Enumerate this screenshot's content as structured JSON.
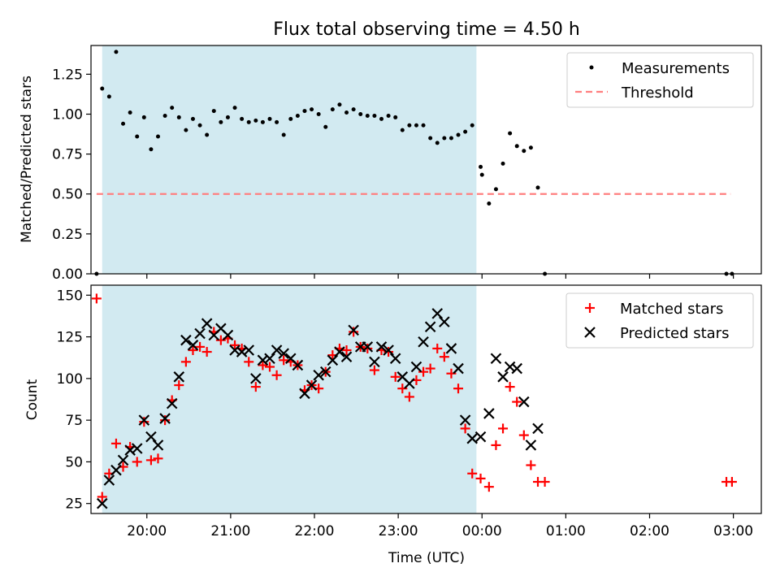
{
  "figure": {
    "title": "Flux total observing time = 4.50 h",
    "xlabel": "Time (UTC)",
    "shade_color": "#add8e6",
    "x_tick_labels": [
      "20:00",
      "21:00",
      "22:00",
      "23:00",
      "00:00",
      "01:00",
      "02:00",
      "03:00"
    ]
  },
  "chart_data": [
    {
      "type": "scatter",
      "panel": "top",
      "ylabel": "Matched/Predicted stars",
      "xlim": [
        "19:20",
        "03:20"
      ],
      "ylim": [
        0,
        1.43
      ],
      "yticks": [
        "0.00",
        "0.25",
        "0.50",
        "0.75",
        "1.00",
        "1.25"
      ],
      "shaded_interval": [
        "19:28",
        "23:56"
      ],
      "legend_position": "upper right",
      "threshold": {
        "name": "Threshold",
        "value": 0.5,
        "x_range": [
          "19:24",
          "02:58"
        ],
        "color": "#ff7f7f",
        "style": "dashed"
      },
      "series": [
        {
          "name": "Measurements",
          "color": "#000000",
          "marker": "dot",
          "points": [
            [
              "19:24",
              0.0
            ],
            [
              "19:28",
              1.16
            ],
            [
              "19:33",
              1.11
            ],
            [
              "19:38",
              1.39
            ],
            [
              "19:43",
              0.94
            ],
            [
              "19:48",
              1.01
            ],
            [
              "19:53",
              0.86
            ],
            [
              "19:58",
              0.98
            ],
            [
              "20:03",
              0.78
            ],
            [
              "20:08",
              0.86
            ],
            [
              "20:13",
              0.99
            ],
            [
              "20:18",
              1.04
            ],
            [
              "20:23",
              0.98
            ],
            [
              "20:28",
              0.9
            ],
            [
              "20:33",
              0.97
            ],
            [
              "20:38",
              0.93
            ],
            [
              "20:43",
              0.87
            ],
            [
              "20:48",
              1.02
            ],
            [
              "20:53",
              0.95
            ],
            [
              "20:58",
              0.98
            ],
            [
              "21:03",
              1.04
            ],
            [
              "21:08",
              0.97
            ],
            [
              "21:13",
              0.95
            ],
            [
              "21:18",
              0.96
            ],
            [
              "21:23",
              0.95
            ],
            [
              "21:28",
              0.97
            ],
            [
              "21:33",
              0.95
            ],
            [
              "21:38",
              0.87
            ],
            [
              "21:43",
              0.97
            ],
            [
              "21:48",
              0.99
            ],
            [
              "21:53",
              1.02
            ],
            [
              "21:58",
              1.03
            ],
            [
              "22:03",
              1.0
            ],
            [
              "22:08",
              0.92
            ],
            [
              "22:13",
              1.03
            ],
            [
              "22:18",
              1.06
            ],
            [
              "22:23",
              1.01
            ],
            [
              "22:28",
              1.03
            ],
            [
              "22:33",
              1.0
            ],
            [
              "22:38",
              0.99
            ],
            [
              "22:43",
              0.99
            ],
            [
              "22:48",
              0.97
            ],
            [
              "22:53",
              0.99
            ],
            [
              "22:58",
              0.98
            ],
            [
              "23:03",
              0.9
            ],
            [
              "23:08",
              0.93
            ],
            [
              "23:13",
              0.93
            ],
            [
              "23:18",
              0.93
            ],
            [
              "23:23",
              0.85
            ],
            [
              "23:28",
              0.82
            ],
            [
              "23:33",
              0.85
            ],
            [
              "23:38",
              0.85
            ],
            [
              "23:43",
              0.87
            ],
            [
              "23:48",
              0.89
            ],
            [
              "23:53",
              0.93
            ],
            [
              "23:59",
              0.67
            ],
            [
              "00:00",
              0.62
            ],
            [
              "00:05",
              0.44
            ],
            [
              "00:10",
              0.53
            ],
            [
              "00:15",
              0.69
            ],
            [
              "00:20",
              0.88
            ],
            [
              "00:25",
              0.8
            ],
            [
              "00:30",
              0.77
            ],
            [
              "00:35",
              0.79
            ],
            [
              "00:40",
              0.54
            ],
            [
              "00:45",
              0.0
            ],
            [
              "02:55",
              0.0
            ],
            [
              "02:59",
              0.0
            ]
          ]
        }
      ]
    },
    {
      "type": "scatter",
      "panel": "bottom",
      "ylabel": "Count",
      "xlim": [
        "19:20",
        "03:20"
      ],
      "ylim": [
        19,
        156
      ],
      "yticks": [
        "25",
        "50",
        "75",
        "100",
        "125",
        "150"
      ],
      "shaded_interval": [
        "19:28",
        "23:56"
      ],
      "legend_position": "upper right",
      "series": [
        {
          "name": "Matched stars",
          "color": "#ff0000",
          "marker": "plus",
          "points": [
            [
              "19:24",
              148
            ],
            [
              "19:28",
              29
            ],
            [
              "19:33",
              43
            ],
            [
              "19:38",
              61
            ],
            [
              "19:43",
              47
            ],
            [
              "19:48",
              59
            ],
            [
              "19:53",
              50
            ],
            [
              "19:58",
              74
            ],
            [
              "20:03",
              51
            ],
            [
              "20:08",
              52
            ],
            [
              "20:13",
              75
            ],
            [
              "20:18",
              87
            ],
            [
              "20:23",
              96
            ],
            [
              "20:28",
              110
            ],
            [
              "20:33",
              117
            ],
            [
              "20:38",
              119
            ],
            [
              "20:43",
              116
            ],
            [
              "20:48",
              128
            ],
            [
              "20:53",
              123
            ],
            [
              "20:58",
              124
            ],
            [
              "21:03",
              120
            ],
            [
              "21:08",
              118
            ],
            [
              "21:13",
              110
            ],
            [
              "21:18",
              95
            ],
            [
              "21:23",
              108
            ],
            [
              "21:28",
              107
            ],
            [
              "21:33",
              102
            ],
            [
              "21:38",
              111
            ],
            [
              "21:43",
              110
            ],
            [
              "21:48",
              108
            ],
            [
              "21:53",
              93
            ],
            [
              "21:58",
              96
            ],
            [
              "22:03",
              94
            ],
            [
              "22:08",
              104
            ],
            [
              "22:13",
              114
            ],
            [
              "22:18",
              118
            ],
            [
              "22:23",
              117
            ],
            [
              "22:28",
              128
            ],
            [
              "22:33",
              119
            ],
            [
              "22:38",
              118
            ],
            [
              "22:43",
              105
            ],
            [
              "22:48",
              117
            ],
            [
              "22:53",
              116
            ],
            [
              "22:58",
              101
            ],
            [
              "23:03",
              94
            ],
            [
              "23:08",
              89
            ],
            [
              "23:13",
              99
            ],
            [
              "23:18",
              104
            ],
            [
              "23:23",
              106
            ],
            [
              "23:28",
              118
            ],
            [
              "23:33",
              113
            ],
            [
              "23:38",
              103
            ],
            [
              "23:43",
              94
            ],
            [
              "23:48",
              70
            ],
            [
              "23:53",
              43
            ],
            [
              "23:59",
              40
            ],
            [
              "00:05",
              35
            ],
            [
              "00:10",
              60
            ],
            [
              "00:15",
              70
            ],
            [
              "00:20",
              95
            ],
            [
              "00:25",
              86
            ],
            [
              "00:30",
              66
            ],
            [
              "00:35",
              48
            ],
            [
              "00:40",
              38
            ],
            [
              "00:45",
              38
            ],
            [
              "02:55",
              38
            ],
            [
              "02:59",
              38
            ]
          ]
        },
        {
          "name": "Predicted stars",
          "color": "#000000",
          "marker": "x",
          "points": [
            [
              "19:28",
              25
            ],
            [
              "19:33",
              39
            ],
            [
              "19:38",
              45
            ],
            [
              "19:43",
              51
            ],
            [
              "19:48",
              57
            ],
            [
              "19:53",
              58
            ],
            [
              "19:58",
              75
            ],
            [
              "20:03",
              65
            ],
            [
              "20:08",
              60
            ],
            [
              "20:13",
              76
            ],
            [
              "20:18",
              85
            ],
            [
              "20:23",
              101
            ],
            [
              "20:28",
              123
            ],
            [
              "20:33",
              120
            ],
            [
              "20:38",
              127
            ],
            [
              "20:43",
              133
            ],
            [
              "20:48",
              126
            ],
            [
              "20:53",
              130
            ],
            [
              "20:58",
              126
            ],
            [
              "21:03",
              117
            ],
            [
              "21:08",
              116
            ],
            [
              "21:13",
              117
            ],
            [
              "21:18",
              100
            ],
            [
              "21:23",
              111
            ],
            [
              "21:28",
              112
            ],
            [
              "21:33",
              117
            ],
            [
              "21:38",
              115
            ],
            [
              "21:43",
              112
            ],
            [
              "21:48",
              108
            ],
            [
              "21:53",
              91
            ],
            [
              "21:58",
              96
            ],
            [
              "22:03",
              102
            ],
            [
              "22:08",
              104
            ],
            [
              "22:13",
              111
            ],
            [
              "22:18",
              116
            ],
            [
              "22:23",
              113
            ],
            [
              "22:28",
              129
            ],
            [
              "22:33",
              119
            ],
            [
              "22:38",
              119
            ],
            [
              "22:43",
              110
            ],
            [
              "22:48",
              119
            ],
            [
              "22:53",
              117
            ],
            [
              "22:58",
              112
            ],
            [
              "23:03",
              101
            ],
            [
              "23:08",
              97
            ],
            [
              "23:13",
              107
            ],
            [
              "23:18",
              122
            ],
            [
              "23:23",
              131
            ],
            [
              "23:28",
              139
            ],
            [
              "23:33",
              134
            ],
            [
              "23:38",
              118
            ],
            [
              "23:43",
              106
            ],
            [
              "23:48",
              75
            ],
            [
              "23:53",
              64
            ],
            [
              "23:59",
              65
            ],
            [
              "00:05",
              79
            ],
            [
              "00:10",
              112
            ],
            [
              "00:15",
              101
            ],
            [
              "00:20",
              107
            ],
            [
              "00:25",
              106
            ],
            [
              "00:30",
              86
            ],
            [
              "00:35",
              60
            ],
            [
              "00:40",
              70
            ]
          ]
        }
      ]
    }
  ]
}
